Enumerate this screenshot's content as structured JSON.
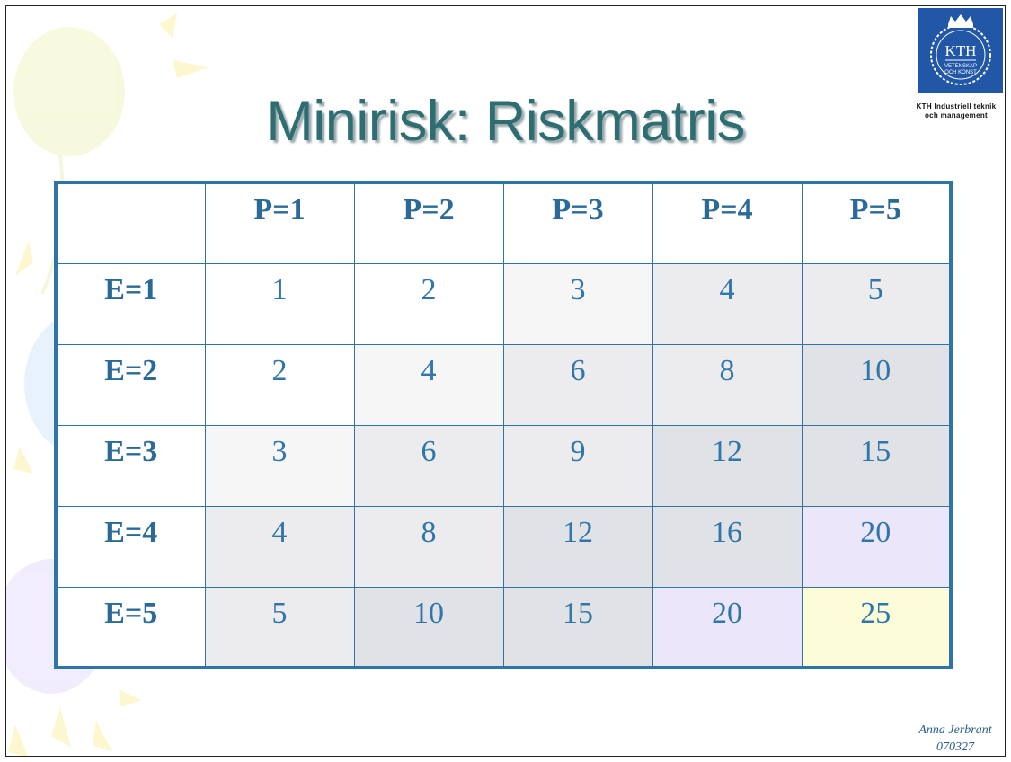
{
  "title": "Minirisk: Riskmatris",
  "logo": {
    "mark": "KTH",
    "motto": "VETENSKAP\nOCH KONST",
    "caption": "KTH Industriell teknik\noch management"
  },
  "matrix": {
    "corner": "",
    "column_headers": [
      "P=1",
      "P=2",
      "P=3",
      "P=4",
      "P=5"
    ],
    "rows": [
      {
        "header": "E=1",
        "values": [
          "1",
          "2",
          "3",
          "4",
          "5"
        ]
      },
      {
        "header": "E=2",
        "values": [
          "2",
          "4",
          "6",
          "8",
          "10"
        ]
      },
      {
        "header": "E=3",
        "values": [
          "3",
          "6",
          "9",
          "12",
          "15"
        ]
      },
      {
        "header": "E=4",
        "values": [
          "4",
          "8",
          "12",
          "16",
          "20"
        ]
      },
      {
        "header": "E=5",
        "values": [
          "5",
          "10",
          "15",
          "20",
          "25"
        ]
      }
    ]
  },
  "colors": {
    "title": "#2e6e73",
    "border": "#2f74a6",
    "text": "#2f76aa",
    "shade_0": "#ffffff",
    "shade_1": "#f6f6f6",
    "shade_2": "#ececee",
    "shade_3": "#e1e2e5",
    "high_purple": "#ece6fb",
    "highest_yellow": "#fdfcd9"
  },
  "footer": {
    "author": "Anna Jerbrant",
    "date": "070327"
  }
}
